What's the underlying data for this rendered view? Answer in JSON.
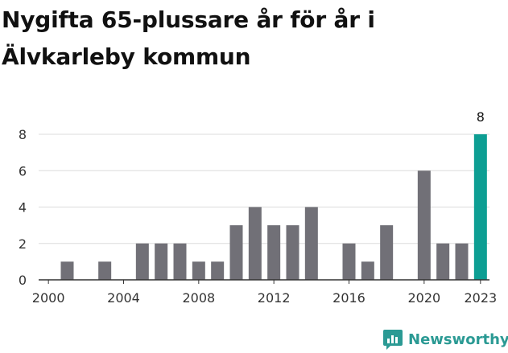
{
  "title": "Nygifta 65-plussare år för år i Älvkarleby kommun",
  "brand": {
    "name": "Newsworthy",
    "icon": "chart-bubble-icon",
    "color": "#2b9a94"
  },
  "colors": {
    "bar": "#717077",
    "highlight": "#0d9e93",
    "grid": "#dcdcdc",
    "axis": "#333333",
    "text": "#333333"
  },
  "chart_data": {
    "type": "bar",
    "title": "Nygifta 65-plussare år för år i Älvkarleby kommun",
    "xlabel": "",
    "ylabel": "",
    "categories": [
      "2000",
      "2001",
      "2002",
      "2003",
      "2004",
      "2005",
      "2006",
      "2007",
      "2008",
      "2009",
      "2010",
      "2011",
      "2012",
      "2013",
      "2014",
      "2015",
      "2016",
      "2017",
      "2018",
      "2019",
      "2020",
      "2021",
      "2022",
      "2023"
    ],
    "values": [
      0,
      1,
      0,
      1,
      0,
      2,
      2,
      2,
      1,
      1,
      3,
      4,
      3,
      3,
      4,
      0,
      2,
      1,
      3,
      0,
      6,
      2,
      2,
      8
    ],
    "highlight_category": "2023",
    "highlight_label": "8",
    "ylim": [
      0,
      8
    ],
    "yticks": [
      0,
      2,
      4,
      6,
      8
    ],
    "xticks": [
      "2000",
      "2004",
      "2008",
      "2012",
      "2016",
      "2020",
      "2023"
    ],
    "grid": true,
    "legend": "none"
  }
}
